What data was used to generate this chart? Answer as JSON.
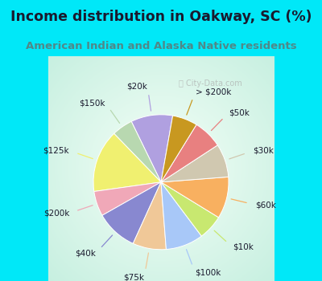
{
  "title": "Income distribution in Oakway, SC (%)",
  "subtitle": "American Indian and Alaska Native residents",
  "slices": [
    {
      "label": "$20k",
      "value": 10,
      "color": "#b0a0e0"
    },
    {
      "label": "$150k",
      "value": 5,
      "color": "#b8d8b0"
    },
    {
      "label": "$125k",
      "value": 15,
      "color": "#f0f070"
    },
    {
      "label": "$200k",
      "value": 6,
      "color": "#f0a8b8"
    },
    {
      "label": "$40k",
      "value": 10,
      "color": "#8888d0"
    },
    {
      "label": "$75k",
      "value": 8,
      "color": "#f0c898"
    },
    {
      "label": "$100k",
      "value": 9,
      "color": "#a8c8f8"
    },
    {
      "label": "$10k",
      "value": 6,
      "color": "#c8e870"
    },
    {
      "label": "$60k",
      "value": 10,
      "color": "#f8b060"
    },
    {
      "label": "$30k",
      "value": 8,
      "color": "#d0c8b0"
    },
    {
      "label": "$50k",
      "value": 7,
      "color": "#e88080"
    },
    {
      "label": "> $200k",
      "value": 6,
      "color": "#c89820"
    }
  ],
  "bg_cyan": "#00e8f8",
  "bg_chart": "#d8f0e8",
  "title_color": "#1a1a2e",
  "subtitle_color": "#508888",
  "label_color": "#1a1a2e",
  "label_fontsize": 7.5,
  "title_fontsize": 12.5,
  "subtitle_fontsize": 9.5,
  "startangle": 80
}
